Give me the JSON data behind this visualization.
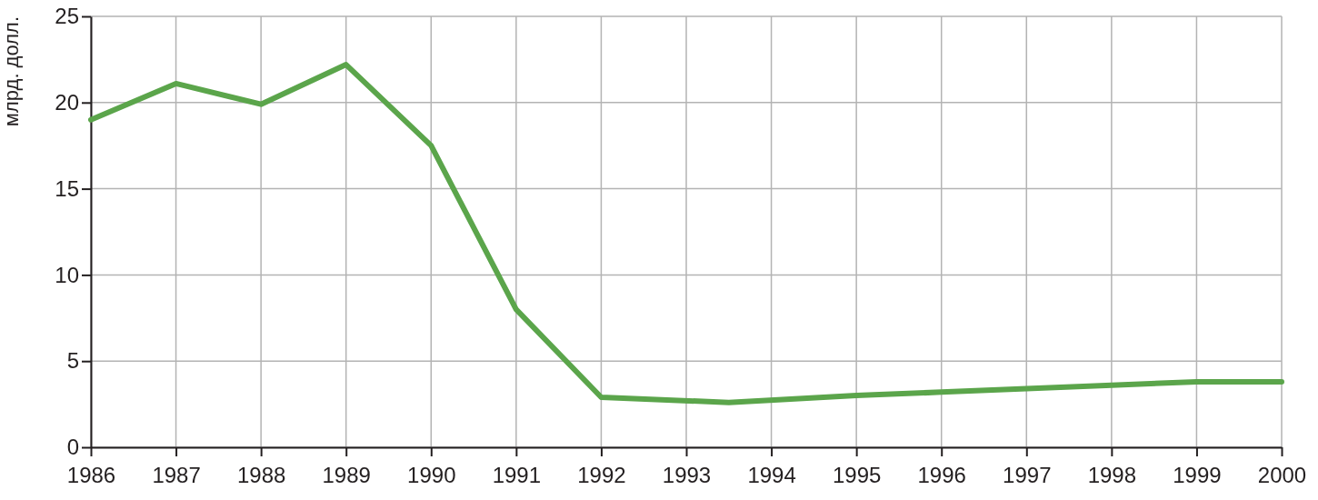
{
  "chart_data": {
    "type": "line",
    "ylabel": "млрд. долл.",
    "x": [
      1986,
      1987,
      1988,
      1989,
      1990,
      1991,
      1992,
      1993.5,
      1995,
      1996,
      1997,
      1998,
      1999,
      2000
    ],
    "series": [
      {
        "color": "#5ba54b",
        "values": [
          19.0,
          21.1,
          19.9,
          22.2,
          17.5,
          8.0,
          2.9,
          2.6,
          3.0,
          3.2,
          3.4,
          3.6,
          3.8,
          3.8
        ]
      }
    ],
    "xlim": [
      1986,
      2000
    ],
    "xticks": [
      1986,
      1987,
      1988,
      1989,
      1990,
      1991,
      1992,
      1993,
      1994,
      1995,
      1996,
      1997,
      1998,
      1999,
      2000
    ],
    "ylim": [
      0,
      25
    ],
    "yticks": [
      0,
      5,
      10,
      15,
      20,
      25
    ],
    "grid": true,
    "marker": "none",
    "line_style": "solid"
  }
}
